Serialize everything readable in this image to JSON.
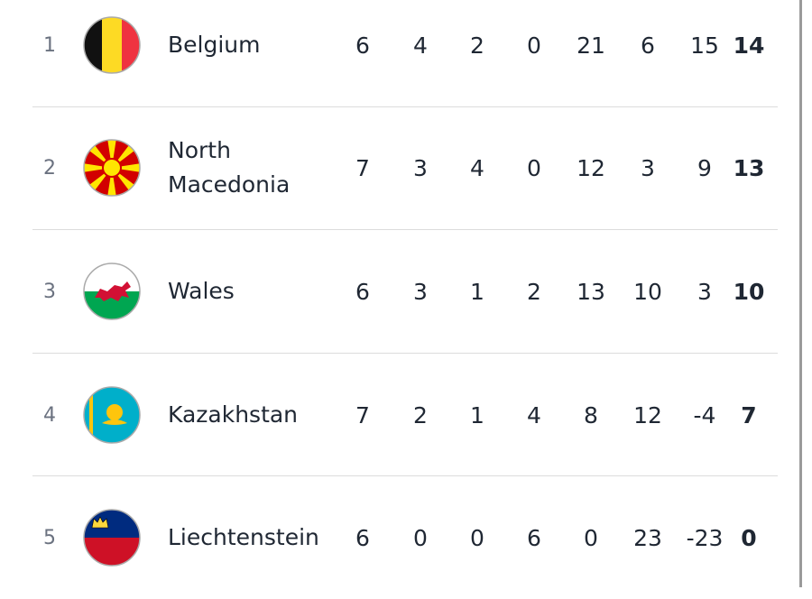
{
  "table": {
    "rows": [
      {
        "rank": 1,
        "team": "Belgium",
        "stats": [
          6,
          4,
          2,
          0,
          21,
          6,
          15
        ],
        "points": 14
      },
      {
        "rank": 2,
        "team": "North Macedonia",
        "stats": [
          7,
          3,
          4,
          0,
          12,
          3,
          9
        ],
        "points": 13
      },
      {
        "rank": 3,
        "team": "Wales",
        "stats": [
          6,
          3,
          1,
          2,
          13,
          10,
          3
        ],
        "points": 10
      },
      {
        "rank": 4,
        "team": "Kazakhstan",
        "stats": [
          7,
          2,
          1,
          4,
          8,
          12,
          -4
        ],
        "points": 7
      },
      {
        "rank": 5,
        "team": "Liechtenstein",
        "stats": [
          6,
          0,
          0,
          6,
          0,
          23,
          -23
        ],
        "points": 0
      }
    ]
  }
}
